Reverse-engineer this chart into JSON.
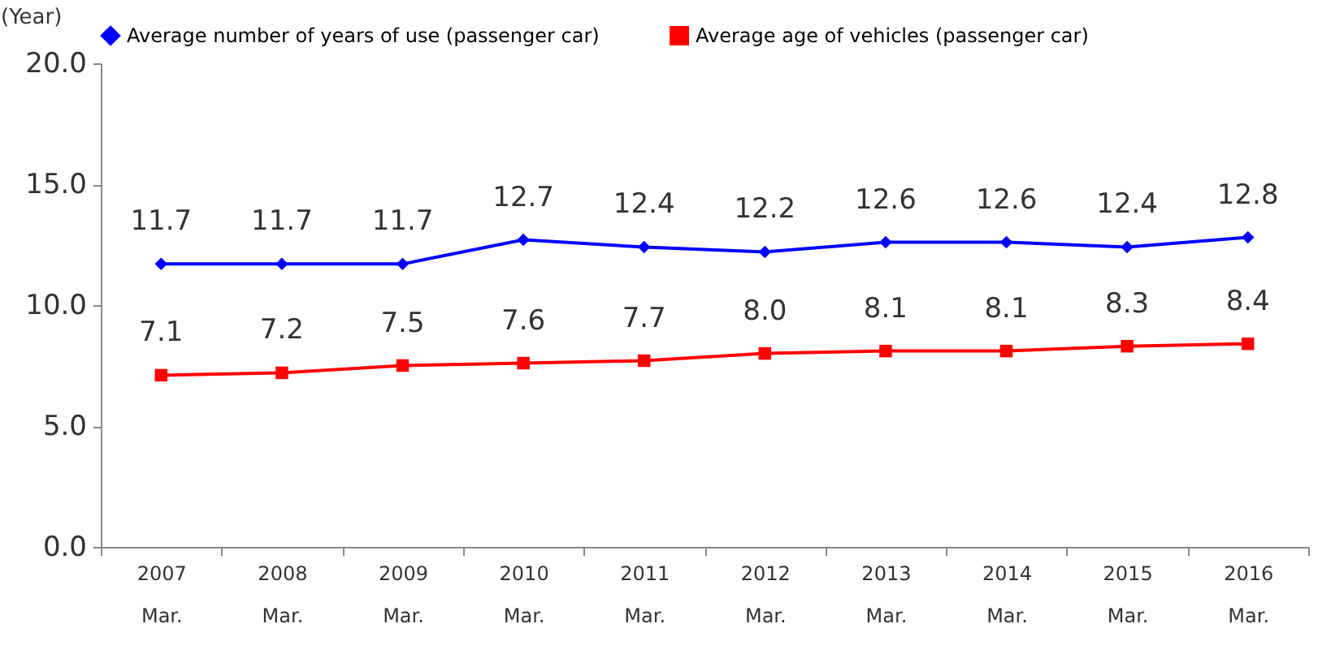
{
  "chart_data": {
    "type": "line",
    "ylabel": "(Year)",
    "categories": [
      "2007\nMar.",
      "2008\nMar.",
      "2009\nMar.",
      "2010\nMar.",
      "2011\nMar.",
      "2012\nMar.",
      "2013\nMar.",
      "2014\nMar.",
      "2015\nMar.",
      "2016\nMar."
    ],
    "series": [
      {
        "name": "Average number of years of use (passenger car)",
        "color": "#0000ff",
        "marker": "diamond",
        "values": [
          11.7,
          11.7,
          11.7,
          12.7,
          12.4,
          12.2,
          12.6,
          12.6,
          12.4,
          12.8
        ],
        "value_labels": [
          "11.7",
          "11.7",
          "11.7",
          "12.7",
          "12.4",
          "12.2",
          "12.6",
          "12.6",
          "12.4",
          "12.8"
        ]
      },
      {
        "name": "Average age of vehicles (passenger car)",
        "color": "#ff0000",
        "marker": "square",
        "values": [
          7.1,
          7.2,
          7.5,
          7.6,
          7.7,
          8.0,
          8.1,
          8.1,
          8.3,
          8.4
        ],
        "value_labels": [
          "7.1",
          "7.2",
          "7.5",
          "7.6",
          "7.7",
          "8.0",
          "8.1",
          "8.1",
          "8.3",
          "8.4"
        ]
      }
    ],
    "ylim": [
      0,
      20
    ],
    "yticks": [
      {
        "value": 0,
        "label": "0.0"
      },
      {
        "value": 5,
        "label": "5.0"
      },
      {
        "value": 10,
        "label": "10.0"
      },
      {
        "value": 15,
        "label": "15.0"
      },
      {
        "value": 20,
        "label": "20.0"
      }
    ],
    "grid": false,
    "legend": "top"
  }
}
